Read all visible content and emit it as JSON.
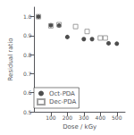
{
  "chart_data": {
    "type": "scatter",
    "xlabel": "Dose / kGy",
    "ylabel": "Residual ratio",
    "series": [
      {
        "name": "Oct-PDA",
        "color": "#222222",
        "marker": "circle",
        "x": [
          25,
          100,
          150,
          200,
          300,
          350,
          450,
          500
        ],
        "values": [
          1.0,
          0.955,
          0.953,
          0.893,
          0.882,
          0.882,
          0.86,
          0.858
        ]
      },
      {
        "name": "Dec-PDA",
        "color": "#888888",
        "marker": "square",
        "x": [
          25,
          100,
          150,
          250,
          320,
          400,
          430
        ],
        "values": [
          1.0,
          0.952,
          0.958,
          0.948,
          0.922,
          0.888,
          0.888
        ]
      }
    ],
    "xlim": [
      0,
      550
    ],
    "xticks": [
      100,
      200,
      300,
      400,
      500
    ],
    "ylim": [
      0.5,
      1.05
    ],
    "yticks": [
      0.5,
      0.6,
      0.7,
      0.8,
      0.9,
      {
        "value": 1.0,
        "label": "1.0"
      }
    ],
    "grid": false,
    "legend": "lower left"
  }
}
